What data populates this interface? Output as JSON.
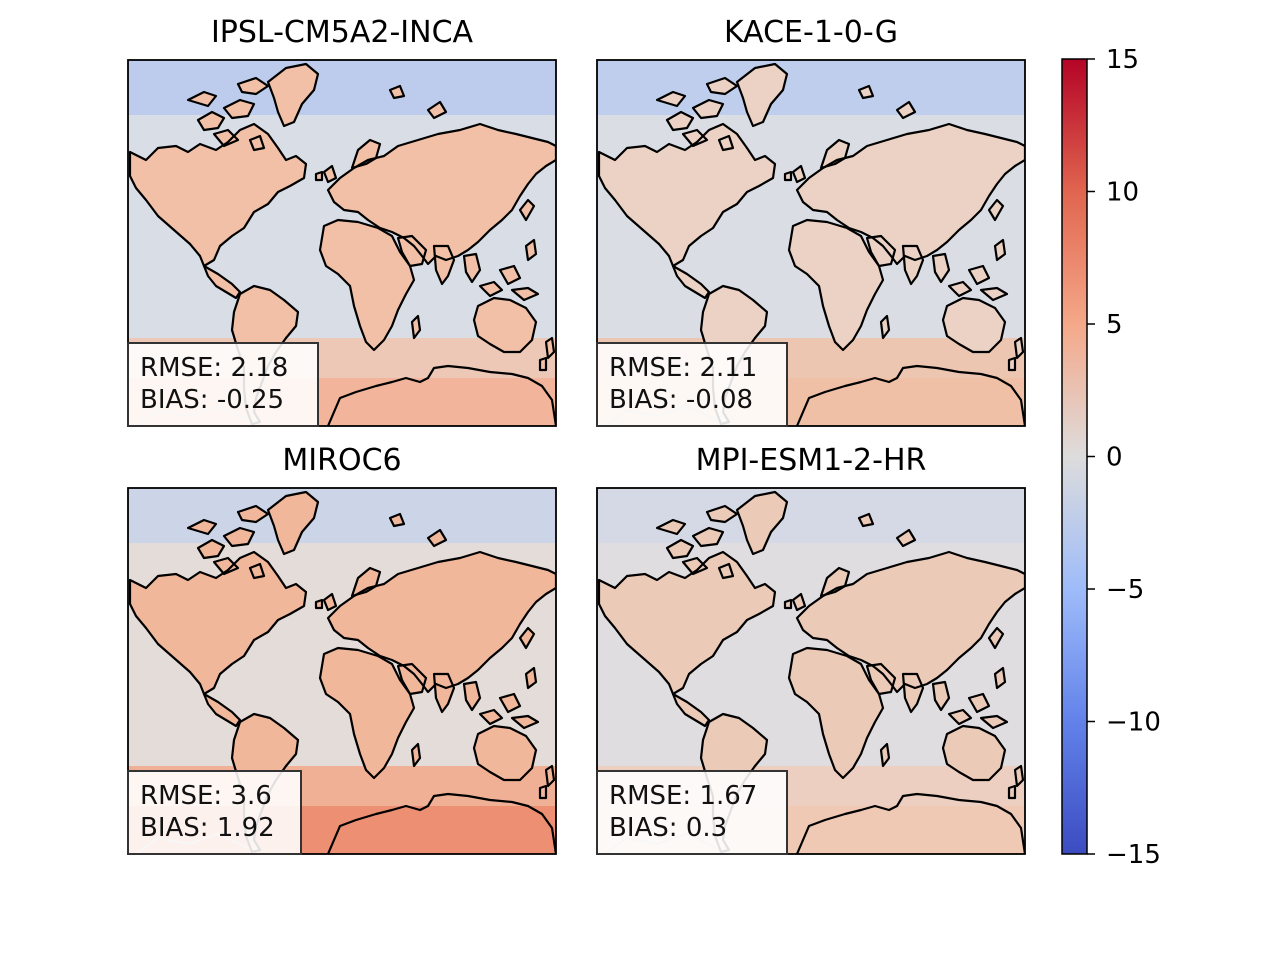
{
  "panels": [
    {
      "title": "IPSL-CM5A2-INCA",
      "rmse": "RMSE: 2.18",
      "bias": "BIAS: -0.25",
      "tint": {
        "land": "#f2c0a6",
        "ocean": "#d9dde6",
        "north": "#b5c8ee",
        "south": "#f0c4ad",
        "antarctic": "#f2b49a"
      }
    },
    {
      "title": "KACE-1-0-G",
      "rmse": "RMSE: 2.11",
      "bias": "BIAS: -0.08",
      "tint": {
        "land": "#ecd2c4",
        "ocean": "#dadde4",
        "north": "#b8cbef",
        "south": "#f0c2a9",
        "antarctic": "#efc0a6"
      }
    },
    {
      "title": "MIROC6",
      "rmse": "RMSE: 3.6",
      "bias": "BIAS: 1.92",
      "tint": {
        "land": "#f1b79b",
        "ocean": "#e4dcd8",
        "north": "#c6d2ec",
        "south": "#f2a88a",
        "antarctic": "#ec8f72"
      }
    },
    {
      "title": "MPI-ESM1-2-HR",
      "rmse": "RMSE: 1.67",
      "bias": "BIAS: 0.3",
      "tint": {
        "land": "#eccab8",
        "ocean": "#dfdde0",
        "north": "#d2d8e6",
        "south": "#eecdbb",
        "antarctic": "#efc9b4"
      }
    }
  ],
  "colorbar": {
    "ticks": [
      "15",
      "10",
      "5",
      "0",
      "−5",
      "−10",
      "−15"
    ],
    "values": [
      15,
      10,
      5,
      0,
      -5,
      -10,
      -15
    ],
    "colors": [
      "#b40426",
      "#e0654f",
      "#f5a889",
      "#dddcdc",
      "#9ebcf9",
      "#6282ea",
      "#3b4cc0"
    ]
  }
}
